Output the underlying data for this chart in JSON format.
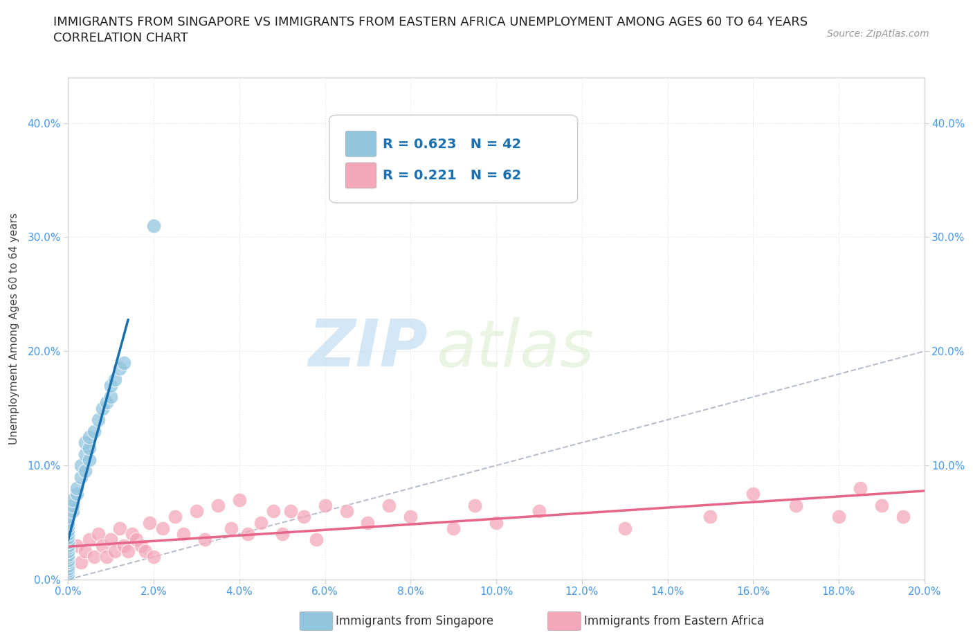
{
  "title_line1": "IMMIGRANTS FROM SINGAPORE VS IMMIGRANTS FROM EASTERN AFRICA UNEMPLOYMENT AMONG AGES 60 TO 64 YEARS",
  "title_line2": "CORRELATION CHART",
  "source": "Source: ZipAtlas.com",
  "ylabel": "Unemployment Among Ages 60 to 64 years",
  "xlim": [
    0.0,
    0.2
  ],
  "ylim": [
    0.0,
    0.44
  ],
  "x_ticks": [
    0.0,
    0.02,
    0.04,
    0.06,
    0.08,
    0.1,
    0.12,
    0.14,
    0.16,
    0.18,
    0.2
  ],
  "y_ticks": [
    0.0,
    0.1,
    0.2,
    0.3,
    0.4
  ],
  "y_ticks_right": [
    0.1,
    0.2,
    0.3,
    0.4
  ],
  "singapore_color": "#92c5de",
  "eastern_africa_color": "#f4a7b9",
  "singapore_line_color": "#1a6faf",
  "eastern_africa_line_color": "#e8658a",
  "diagonal_color": "#b0b8c8",
  "R_singapore": 0.623,
  "N_singapore": 42,
  "R_eastern_africa": 0.221,
  "N_eastern_africa": 62,
  "sg_x": [
    0.0,
    0.0,
    0.0,
    0.0,
    0.0,
    0.0,
    0.0,
    0.0,
    0.0,
    0.0,
    0.0,
    0.0,
    0.0,
    0.0,
    0.0,
    0.0,
    0.0,
    0.0,
    0.0,
    0.001,
    0.001,
    0.001,
    0.002,
    0.002,
    0.003,
    0.003,
    0.004,
    0.004,
    0.004,
    0.005,
    0.005,
    0.005,
    0.006,
    0.007,
    0.008,
    0.009,
    0.01,
    0.01,
    0.011,
    0.012,
    0.013,
    0.02
  ],
  "sg_y": [
    0.0,
    0.005,
    0.008,
    0.01,
    0.012,
    0.015,
    0.017,
    0.02,
    0.022,
    0.025,
    0.028,
    0.03,
    0.033,
    0.037,
    0.04,
    0.043,
    0.047,
    0.05,
    0.055,
    0.06,
    0.065,
    0.07,
    0.075,
    0.08,
    0.09,
    0.1,
    0.095,
    0.11,
    0.12,
    0.105,
    0.115,
    0.125,
    0.13,
    0.14,
    0.15,
    0.155,
    0.16,
    0.17,
    0.175,
    0.185,
    0.19,
    0.31
  ],
  "ea_x": [
    0.0,
    0.0,
    0.0,
    0.0,
    0.0,
    0.0,
    0.0,
    0.0,
    0.0,
    0.0,
    0.0,
    0.002,
    0.003,
    0.004,
    0.005,
    0.006,
    0.007,
    0.008,
    0.009,
    0.01,
    0.011,
    0.012,
    0.013,
    0.014,
    0.015,
    0.016,
    0.017,
    0.018,
    0.019,
    0.02,
    0.022,
    0.025,
    0.027,
    0.03,
    0.032,
    0.035,
    0.038,
    0.04,
    0.042,
    0.045,
    0.048,
    0.05,
    0.052,
    0.055,
    0.058,
    0.06,
    0.065,
    0.07,
    0.075,
    0.08,
    0.09,
    0.095,
    0.1,
    0.11,
    0.13,
    0.15,
    0.16,
    0.17,
    0.18,
    0.185,
    0.19,
    0.195
  ],
  "ea_y": [
    0.0,
    0.005,
    0.008,
    0.01,
    0.012,
    0.015,
    0.018,
    0.02,
    0.022,
    0.025,
    0.028,
    0.03,
    0.015,
    0.025,
    0.035,
    0.02,
    0.04,
    0.03,
    0.02,
    0.035,
    0.025,
    0.045,
    0.03,
    0.025,
    0.04,
    0.035,
    0.03,
    0.025,
    0.05,
    0.02,
    0.045,
    0.055,
    0.04,
    0.06,
    0.035,
    0.065,
    0.045,
    0.07,
    0.04,
    0.05,
    0.06,
    0.04,
    0.06,
    0.055,
    0.035,
    0.065,
    0.06,
    0.05,
    0.065,
    0.055,
    0.045,
    0.065,
    0.05,
    0.06,
    0.045,
    0.055,
    0.075,
    0.065,
    0.055,
    0.08,
    0.065,
    0.055
  ],
  "watermark_text": "ZIPatlas",
  "background_color": "#ffffff",
  "grid_color": "#e0e0e0",
  "tick_color": "#4499ee"
}
